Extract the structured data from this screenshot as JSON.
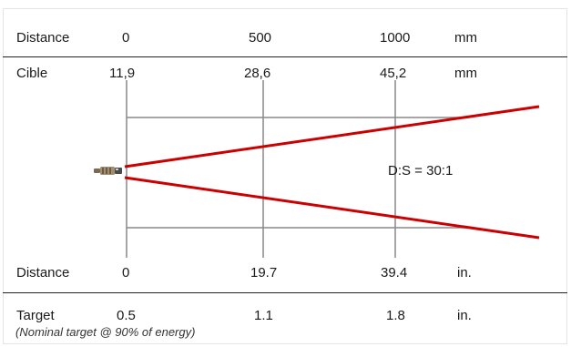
{
  "table": {
    "top_mm": {
      "label": "Distance",
      "v0": "0",
      "v1": "500",
      "v2": "1000",
      "unit": "mm"
    },
    "target_mm": {
      "label": "Cible",
      "v0": "11,9",
      "v1": "28,6",
      "v2": "45,2",
      "unit": "mm"
    },
    "bottom_in": {
      "label": "Distance",
      "v0": "0",
      "v1": "19.7",
      "v2": "39.4",
      "unit": "in."
    },
    "target_in": {
      "label": "Target",
      "v0": "0.5",
      "v1": "1.1",
      "v2": "1.8",
      "unit": "in."
    }
  },
  "ratio_label": "D:S = 30:1",
  "footnote": "(Nominal target @ 90% of energy)",
  "colors": {
    "beam": "#cc0000",
    "grid": "#888888",
    "rule": "#222222"
  }
}
